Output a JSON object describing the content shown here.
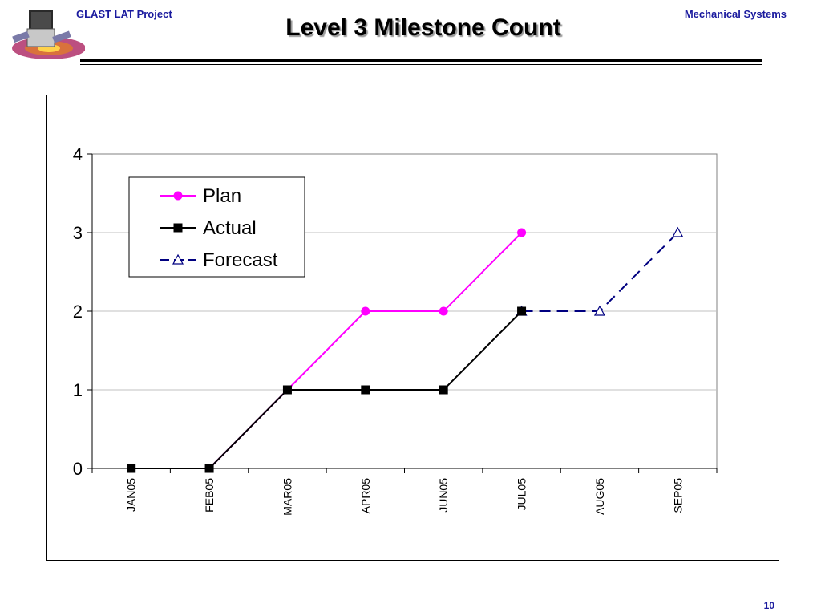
{
  "header": {
    "project": "GLAST LAT Project",
    "section": "Mechanical Systems"
  },
  "slide": {
    "title": "Level 3 Milestone Count",
    "page_number": "10"
  },
  "colors": {
    "plan": "#ff00ff",
    "actual": "#000000",
    "forecast": "#000080",
    "header_text": "#1a1a9e"
  },
  "chart_data": {
    "type": "line",
    "categories": [
      "JAN05",
      "FEB05",
      "MAR05",
      "APR05",
      "JUN05",
      "JUL05",
      "AUG05",
      "SEP05"
    ],
    "ylim": [
      0,
      4
    ],
    "yticks": [
      0,
      1,
      2,
      3,
      4
    ],
    "grid": true,
    "legend_position": "top-left",
    "series": [
      {
        "name": "Plan",
        "marker": "circle",
        "line": "solid",
        "values": [
          0,
          0,
          1,
          2,
          2,
          3,
          null,
          null
        ]
      },
      {
        "name": "Actual",
        "marker": "square",
        "line": "solid",
        "values": [
          0,
          0,
          1,
          1,
          1,
          2,
          null,
          null
        ]
      },
      {
        "name": "Forecast",
        "marker": "triangle-open",
        "line": "dashed",
        "values": [
          null,
          null,
          null,
          null,
          null,
          2,
          2,
          3
        ]
      }
    ]
  }
}
